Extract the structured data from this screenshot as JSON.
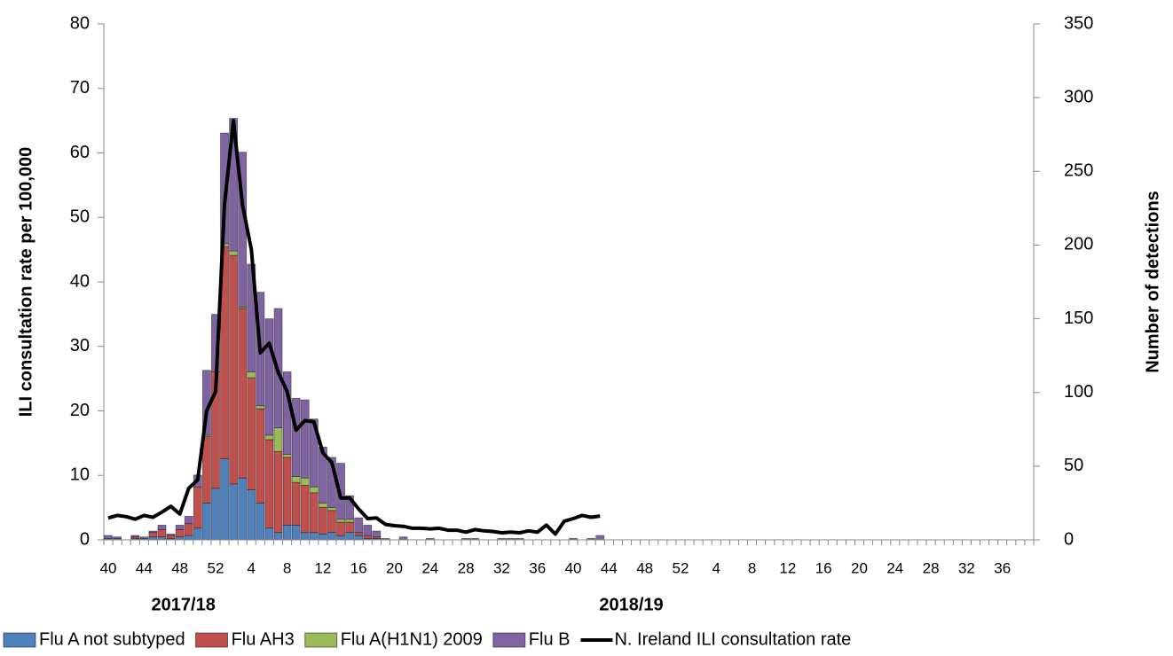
{
  "chart_data": {
    "type": "bar-line",
    "y_label": "ILI consultation rate per 100,000",
    "y2_label": "Number of detections",
    "season_labels": [
      "2017/18",
      "2018/19"
    ],
    "ylim": [
      0,
      80
    ],
    "yticks": [
      0,
      10,
      20,
      30,
      40,
      50,
      60,
      70,
      80
    ],
    "y2lim": [
      0,
      350
    ],
    "y2ticks": [
      0,
      50,
      100,
      150,
      200,
      250,
      300,
      350
    ],
    "categories": [
      "40",
      null,
      null,
      null,
      "44",
      null,
      null,
      null,
      "48",
      null,
      null,
      null,
      "52",
      null,
      null,
      null,
      "4",
      null,
      null,
      null,
      "8",
      null,
      null,
      null,
      "12",
      null,
      null,
      null,
      "16",
      null,
      null,
      null,
      "20",
      null,
      null,
      null,
      "24",
      null,
      null,
      null,
      "28",
      null,
      null,
      null,
      "32",
      null,
      null,
      null,
      "36",
      null,
      null,
      null,
      "40",
      null,
      null,
      null,
      "44",
      null,
      null,
      null,
      "48",
      null,
      null,
      null,
      "52",
      null,
      null,
      null,
      "4",
      null,
      null,
      null,
      "8",
      null,
      null,
      null,
      "12",
      null,
      null,
      null,
      "16",
      null,
      null,
      null,
      "20",
      null,
      null,
      null,
      "24",
      null,
      null,
      null,
      "28",
      null,
      null,
      null,
      "32",
      null,
      null,
      null,
      "36",
      null,
      null,
      null
    ],
    "series": [
      {
        "name": "Flu A not subtyped",
        "color": "#4f81bd",
        "kind": "bar",
        "axis": "y2",
        "values": [
          1,
          1,
          0,
          1,
          1,
          2,
          2,
          1,
          2,
          3,
          8,
          25,
          35,
          55,
          38,
          42,
          34,
          25,
          8,
          5,
          10,
          10,
          5,
          5,
          4,
          5,
          3,
          5,
          3,
          1,
          1,
          0,
          0,
          0,
          0,
          0,
          0,
          0,
          0,
          0,
          0,
          0,
          0,
          0,
          0,
          0,
          0,
          0,
          0,
          0,
          0,
          0,
          0,
          0,
          0,
          0,
          null,
          null,
          null,
          null,
          null,
          null,
          null,
          null,
          null,
          null,
          null,
          null,
          null,
          null,
          null,
          null,
          null,
          null,
          null,
          null,
          null,
          null,
          null,
          null,
          null,
          null,
          null,
          null,
          null,
          null,
          null,
          null,
          null,
          null,
          null,
          null,
          null,
          null,
          null,
          null,
          null,
          null,
          null,
          null,
          null,
          null,
          null,
          null
        ]
      },
      {
        "name": "Flu AH3",
        "color": "#c0504d",
        "kind": "bar",
        "axis": "y2",
        "values": [
          0,
          0,
          0,
          1,
          0,
          3,
          5,
          2,
          5,
          8,
          28,
          45,
          79,
          144,
          155,
          115,
          76,
          64,
          60,
          55,
          46,
          29,
          32,
          27,
          18,
          15,
          9,
          7,
          2,
          2,
          1,
          0,
          0,
          0,
          0,
          0,
          0,
          0,
          0,
          0,
          0,
          0,
          0,
          0,
          0,
          0,
          0,
          0,
          0,
          0,
          0,
          0,
          0,
          0,
          0,
          0,
          null,
          null,
          null,
          null,
          null,
          null,
          null,
          null,
          null,
          null,
          null,
          null,
          null,
          null,
          null,
          null,
          null,
          null,
          null,
          null,
          null,
          null,
          null,
          null,
          null,
          null,
          null,
          null,
          null,
          null,
          null,
          null,
          null,
          null,
          null,
          null,
          null,
          null,
          null,
          null,
          null,
          null,
          null,
          null,
          null,
          null,
          null,
          null
        ]
      },
      {
        "name": "Flu A(H1N1) 2009",
        "color": "#9bbb59",
        "kind": "bar",
        "axis": "y2",
        "values": [
          0,
          0,
          0,
          0,
          0,
          0,
          0,
          0,
          0,
          0,
          0,
          1,
          0,
          2,
          3,
          1,
          4,
          2,
          3,
          16,
          2,
          4,
          5,
          4,
          3,
          2,
          2,
          2,
          0,
          0,
          0,
          0,
          0,
          0,
          0,
          0,
          0,
          0,
          0,
          0,
          0,
          0,
          0,
          0,
          0,
          0,
          0,
          0,
          0,
          0,
          0,
          0,
          0,
          0,
          0,
          0,
          null,
          null,
          null,
          null,
          null,
          null,
          null,
          null,
          null,
          null,
          null,
          null,
          null,
          null,
          null,
          null,
          null,
          null,
          null,
          null,
          null,
          null,
          null,
          null,
          null,
          null,
          null,
          null,
          null,
          null,
          null,
          null,
          null,
          null,
          null,
          null,
          null,
          null,
          null,
          null,
          null,
          null,
          null,
          null,
          null,
          null,
          null,
          null
        ]
      },
      {
        "name": "Flu B",
        "color": "#8064a2",
        "kind": "bar",
        "axis": "y2",
        "values": [
          2,
          1,
          0,
          1,
          1,
          1,
          3,
          1,
          3,
          5,
          8,
          44,
          39,
          75,
          90,
          105,
          73,
          77,
          79,
          81,
          56,
          53,
          53,
          46,
          38,
          34,
          38,
          16,
          10,
          7,
          4,
          1,
          0,
          2,
          0,
          0,
          1,
          0,
          0,
          0,
          1,
          1,
          0,
          0,
          1,
          1,
          1,
          0,
          0,
          0,
          0,
          0,
          1,
          0,
          1,
          3,
          null,
          null,
          null,
          null,
          null,
          null,
          null,
          null,
          null,
          null,
          null,
          null,
          null,
          null,
          null,
          null,
          null,
          null,
          null,
          null,
          null,
          null,
          null,
          null,
          null,
          null,
          null,
          null,
          null,
          null,
          null,
          null,
          null,
          null,
          null,
          null,
          null,
          null,
          null,
          null,
          null,
          null,
          null,
          null,
          null,
          null,
          null,
          null
        ]
      },
      {
        "name": "N. Ireland ILI consultation rate",
        "color": "#000000",
        "kind": "line",
        "axis": "y",
        "values": [
          3.4,
          3.8,
          3.6,
          3.2,
          3.8,
          3.5,
          4.3,
          5.2,
          4.0,
          8.0,
          9.3,
          20,
          23,
          52,
          65,
          52,
          45,
          29,
          30.5,
          26,
          23,
          17,
          18.5,
          18.3,
          13.5,
          12,
          6.5,
          6.5,
          4.8,
          3.3,
          3.4,
          2.4,
          2.2,
          2.1,
          1.8,
          1.8,
          1.7,
          1.8,
          1.5,
          1.5,
          1.2,
          1.6,
          1.4,
          1.3,
          1.1,
          1.2,
          1.1,
          1.4,
          1.2,
          2.3,
          0.9,
          2.9,
          3.3,
          3.8,
          3.5,
          3.7,
          null,
          null,
          null,
          null,
          null,
          null,
          null,
          null,
          null,
          null,
          null,
          null,
          null,
          null,
          null,
          null,
          null,
          null,
          null,
          null,
          null,
          null,
          null,
          null,
          null,
          null,
          null,
          null,
          null,
          null,
          null,
          null,
          null,
          null,
          null,
          null,
          null,
          null,
          null,
          null,
          null,
          null,
          null,
          null,
          null,
          null,
          null,
          null
        ]
      }
    ]
  }
}
